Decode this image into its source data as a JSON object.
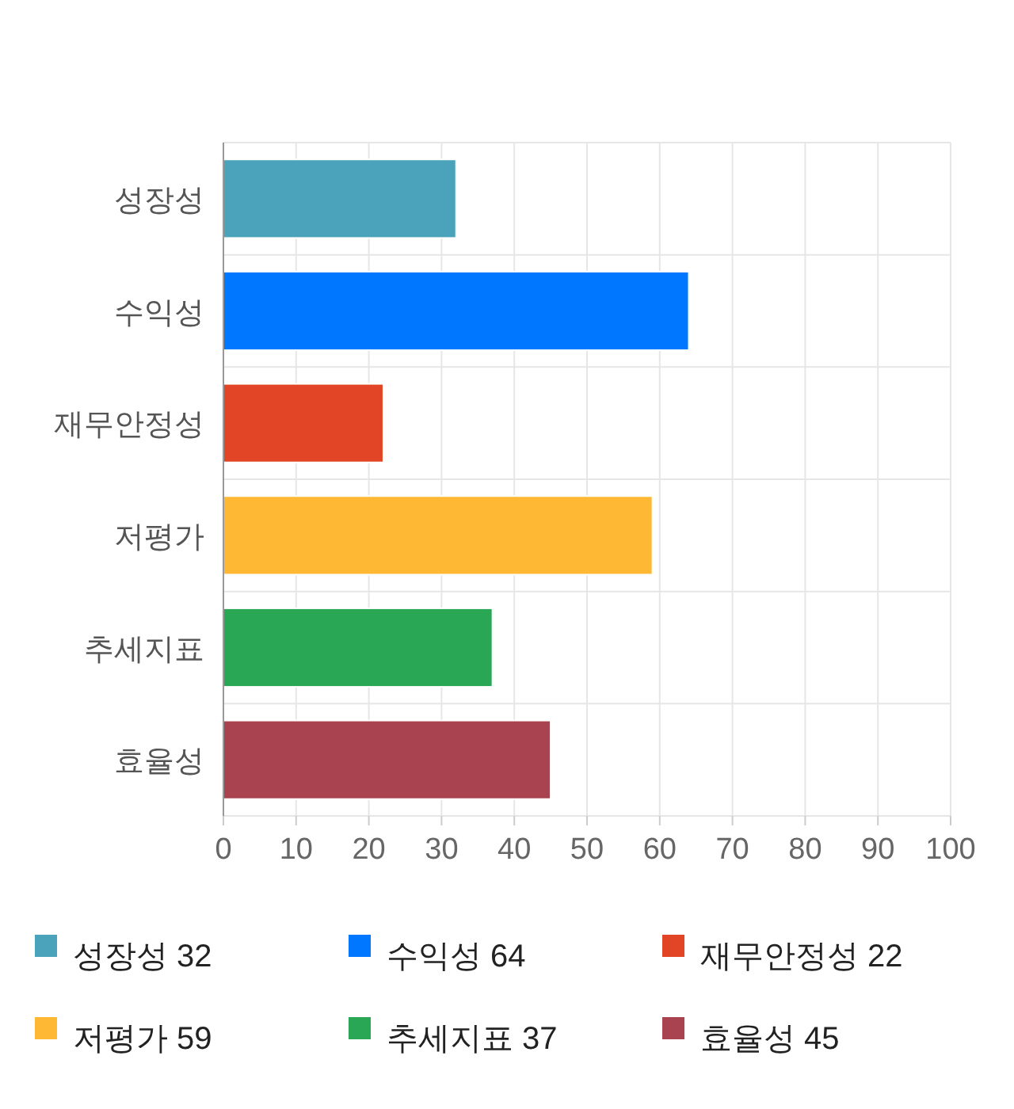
{
  "chart_data": {
    "type": "bar",
    "orientation": "horizontal",
    "categories": [
      "성장성",
      "수익성",
      "재무안정성",
      "저평가",
      "추세지표",
      "효율성"
    ],
    "series": [
      {
        "name": "성장성 32",
        "color": "#4aa3bb",
        "values": [
          32,
          null,
          null,
          null,
          null,
          null
        ]
      },
      {
        "name": "수익성 64",
        "color": "#0077ff",
        "values": [
          null,
          64,
          null,
          null,
          null,
          null
        ]
      },
      {
        "name": "재무안정성 22",
        "color": "#e24526",
        "values": [
          null,
          null,
          22,
          null,
          null,
          null
        ]
      },
      {
        "name": "저평가 59",
        "color": "#ffb833",
        "values": [
          null,
          null,
          null,
          59,
          null,
          null
        ]
      },
      {
        "name": "추세지표 37",
        "color": "#29a755",
        "values": [
          null,
          null,
          null,
          null,
          37,
          null
        ]
      },
      {
        "name": "효율성 45",
        "color": "#a8434f",
        "values": [
          null,
          null,
          null,
          null,
          null,
          45
        ]
      }
    ],
    "xlim": [
      0,
      100
    ],
    "xticks": [
      0,
      10,
      20,
      30,
      40,
      50,
      60,
      70,
      80,
      90,
      100
    ],
    "grid": true,
    "legend": "bottom"
  }
}
